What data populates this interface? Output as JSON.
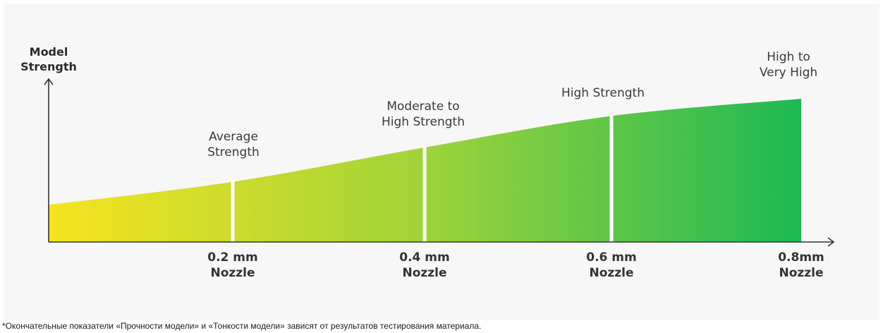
{
  "chart_data": {
    "type": "area",
    "ylabel": [
      "Model",
      "Strength"
    ],
    "categories": [
      [
        "",
        ""
      ],
      [
        "0.2 mm",
        "Nozzle"
      ],
      [
        "0.4 mm",
        "Nozzle"
      ],
      [
        "0.6 mm",
        "Nozzle"
      ],
      [
        "0.8mm",
        "Nozzle"
      ]
    ],
    "relative_strength": [
      0.26,
      0.42,
      0.66,
      0.88,
      1.0
    ],
    "level_labels": [
      [
        "Average",
        "Strength"
      ],
      [
        "Moderate to",
        "High Strength"
      ],
      [
        "High Strength"
      ],
      [
        "High to",
        "Very High"
      ]
    ],
    "gradient": {
      "start": "#f7e41f",
      "mid": "#9fd33a",
      "end": "#1db954"
    },
    "grid": false,
    "legend": "none"
  },
  "footnote": "*Окончательные показатели «Прочности модели» и «Тонкости модели» зависят от результатов тестирования материала."
}
